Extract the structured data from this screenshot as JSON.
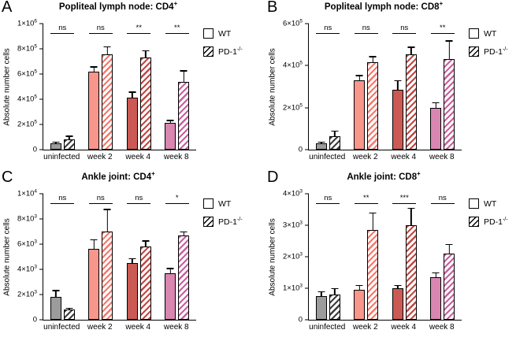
{
  "legend": {
    "items": [
      {
        "label": "WT",
        "style": "open"
      },
      {
        "label": "PD-1^-/-",
        "style": "hatched"
      }
    ]
  },
  "chart_data": [
    {
      "id": "A",
      "type": "bar",
      "title": "Popliteal lymph node: CD4^+",
      "ylabel": "Absolute number cells",
      "ymax": 1000000,
      "yticks": [
        {
          "value": 0,
          "label": "0"
        },
        {
          "value": 200000,
          "label": "2×10^5"
        },
        {
          "value": 400000,
          "label": "4×10^5"
        },
        {
          "value": 600000,
          "label": "6×10^5"
        },
        {
          "value": 800000,
          "label": "8×10^5"
        },
        {
          "value": 1000000,
          "label": "1×10^6"
        }
      ],
      "categories": [
        "uninfected",
        "week 2",
        "week 4",
        "week 8"
      ],
      "series": [
        {
          "name": "WT",
          "pattern": "solid",
          "values": [
            50000,
            620000,
            410000,
            215000
          ],
          "errors": [
            15000,
            40000,
            50000,
            20000
          ]
        },
        {
          "name": "PD-1^-/-",
          "pattern": "hatched",
          "values": [
            80000,
            755000,
            730000,
            540000
          ],
          "errors": [
            30000,
            65000,
            60000,
            90000
          ]
        }
      ],
      "significance": [
        "ns",
        "ns",
        "**",
        "**"
      ],
      "group_colors": [
        {
          "solid": "#9c9c9c",
          "hatch": "#3d3d3d"
        },
        {
          "solid": "#f9968b",
          "hatch": "#f4776c"
        },
        {
          "solid": "#cb5a54",
          "hatch": "#c24742"
        },
        {
          "solid": "#d986b0",
          "hatch": "#c75f9d"
        }
      ]
    },
    {
      "id": "B",
      "type": "bar",
      "title": "Popliteal lymph node: CD8^+",
      "ylabel": "Absolute number cells",
      "ymax": 600000,
      "yticks": [
        {
          "value": 0,
          "label": "0"
        },
        {
          "value": 200000,
          "label": "2×10^5"
        },
        {
          "value": 400000,
          "label": "4×10^5"
        },
        {
          "value": 600000,
          "label": "6×10^5"
        }
      ],
      "categories": [
        "uninfected",
        "week 2",
        "week 4",
        "week 8"
      ],
      "series": [
        {
          "name": "WT",
          "pattern": "solid",
          "values": [
            30000,
            330000,
            285000,
            200000
          ],
          "errors": [
            8000,
            25000,
            45000,
            25000
          ]
        },
        {
          "name": "PD-1^-/-",
          "pattern": "hatched",
          "values": [
            65000,
            415000,
            455000,
            430000
          ],
          "errors": [
            25000,
            30000,
            35000,
            90000
          ]
        }
      ],
      "significance": [
        "ns",
        "ns",
        "ns",
        "**"
      ],
      "group_colors": [
        {
          "solid": "#9c9c9c",
          "hatch": "#3d3d3d"
        },
        {
          "solid": "#f9968b",
          "hatch": "#f4776c"
        },
        {
          "solid": "#cb5a54",
          "hatch": "#c24742"
        },
        {
          "solid": "#d986b0",
          "hatch": "#c75f9d"
        }
      ]
    },
    {
      "id": "C",
      "type": "bar",
      "title": "Ankle joint: CD4^+",
      "ylabel": "Absolute number cells",
      "ymax": 10000,
      "yticks": [
        {
          "value": 0,
          "label": "0"
        },
        {
          "value": 2000,
          "label": "2×10^3"
        },
        {
          "value": 4000,
          "label": "4×10^3"
        },
        {
          "value": 6000,
          "label": "6×10^3"
        },
        {
          "value": 8000,
          "label": "8×10^3"
        },
        {
          "value": 10000,
          "label": "1×10^4"
        }
      ],
      "categories": [
        "uninfected",
        "week 2",
        "week 4",
        "week 8"
      ],
      "series": [
        {
          "name": "WT",
          "pattern": "solid",
          "values": [
            1800,
            5600,
            4500,
            3700
          ],
          "errors": [
            550,
            800,
            400,
            400
          ]
        },
        {
          "name": "PD-1^-/-",
          "pattern": "hatched",
          "values": [
            800,
            7000,
            5800,
            6700
          ],
          "errors": [
            150,
            1800,
            500,
            300
          ]
        }
      ],
      "significance": [
        "ns",
        "ns",
        "ns",
        "*"
      ],
      "group_colors": [
        {
          "solid": "#9c9c9c",
          "hatch": "#3d3d3d"
        },
        {
          "solid": "#f9968b",
          "hatch": "#f4776c"
        },
        {
          "solid": "#cb5a54",
          "hatch": "#c24742"
        },
        {
          "solid": "#d986b0",
          "hatch": "#c75f9d"
        }
      ]
    },
    {
      "id": "D",
      "type": "bar",
      "title": "Ankle joint: CD8^+",
      "ylabel": "Absolute number cells",
      "ymax": 4000,
      "yticks": [
        {
          "value": 0,
          "label": "0"
        },
        {
          "value": 1000,
          "label": "1×10^3"
        },
        {
          "value": 2000,
          "label": "2×10^3"
        },
        {
          "value": 3000,
          "label": "3×10^3"
        },
        {
          "value": 4000,
          "label": "4×10^3"
        }
      ],
      "categories": [
        "uninfected",
        "week 2",
        "week 4",
        "week 8"
      ],
      "series": [
        {
          "name": "WT",
          "pattern": "solid",
          "values": [
            750,
            950,
            1000,
            1350
          ],
          "errors": [
            150,
            150,
            100,
            150
          ]
        },
        {
          "name": "PD-1^-/-",
          "pattern": "hatched",
          "values": [
            800,
            2850,
            3000,
            2100
          ],
          "errors": [
            200,
            550,
            550,
            300
          ]
        }
      ],
      "significance": [
        "ns",
        "**",
        "***",
        "ns"
      ],
      "group_colors": [
        {
          "solid": "#9c9c9c",
          "hatch": "#3d3d3d"
        },
        {
          "solid": "#f9968b",
          "hatch": "#f4776c"
        },
        {
          "solid": "#cb5a54",
          "hatch": "#c24742"
        },
        {
          "solid": "#d986b0",
          "hatch": "#c75f9d"
        }
      ]
    }
  ]
}
